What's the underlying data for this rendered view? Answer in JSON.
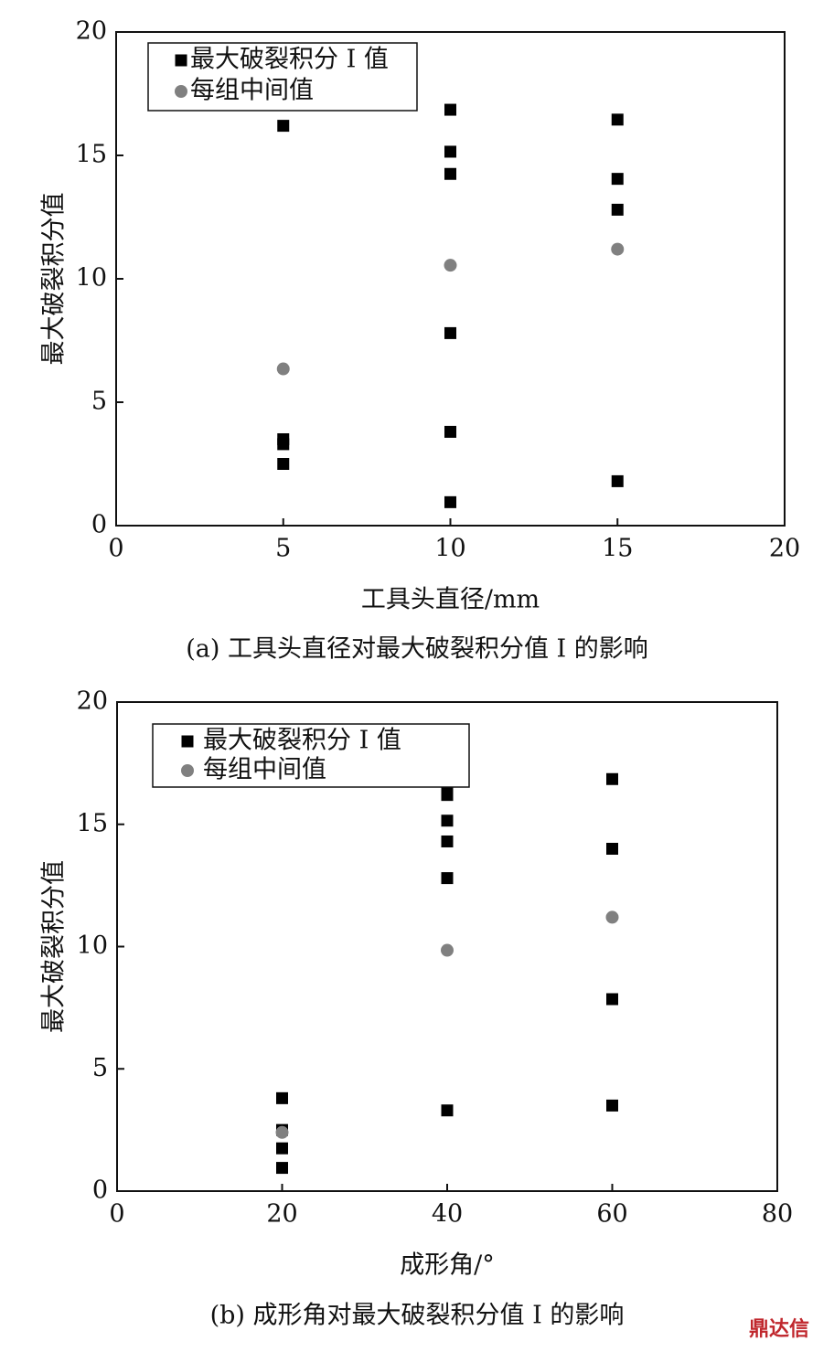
{
  "chart_data": [
    {
      "type": "scatter",
      "y_label": "最大破裂积分值",
      "x_label": "工具头直径/mm",
      "caption": "(a) 工具头直径对最大破裂积分值 I 的影响",
      "xlim": [
        0,
        20
      ],
      "ylim": [
        0,
        20
      ],
      "xticks": [
        0,
        5,
        10,
        15,
        20
      ],
      "yticks": [
        0,
        5,
        10,
        15,
        20
      ],
      "series": [
        {
          "name": "最大破裂积分 I 值",
          "color": "#000000",
          "marker": "square",
          "x": [
            5,
            5,
            5,
            5,
            10,
            10,
            10,
            10,
            10,
            10,
            15,
            15,
            15,
            15
          ],
          "values": [
            16.2,
            3.5,
            3.3,
            2.5,
            16.85,
            15.15,
            14.25,
            7.8,
            3.8,
            0.95,
            16.45,
            14.05,
            12.8,
            1.8
          ]
        },
        {
          "name": "每组中间值",
          "color": "#808080",
          "marker": "circle",
          "x": [
            5,
            10,
            15
          ],
          "values": [
            6.35,
            10.55,
            11.2
          ]
        }
      ]
    },
    {
      "type": "scatter",
      "y_label": "最大破裂积分值",
      "x_label": "成形角/°",
      "caption": "(b) 成形角对最大破裂积分值 I 的影响",
      "xlim": [
        0,
        80
      ],
      "ylim": [
        0,
        20
      ],
      "xticks": [
        0,
        20,
        40,
        60,
        80
      ],
      "yticks": [
        0,
        5,
        10,
        15,
        20
      ],
      "series": [
        {
          "name": "最大破裂积分 I 值",
          "color": "#000000",
          "marker": "square",
          "x": [
            20,
            20,
            20,
            20,
            40,
            40,
            40,
            40,
            40,
            40,
            60,
            60,
            60,
            60
          ],
          "values": [
            3.8,
            2.5,
            1.75,
            0.95,
            16.45,
            16.2,
            15.15,
            14.3,
            12.8,
            3.3,
            16.85,
            14.0,
            7.85,
            3.5
          ]
        },
        {
          "name": "每组中间值",
          "color": "#808080",
          "marker": "circle",
          "x": [
            20,
            40,
            60
          ],
          "values": [
            2.4,
            9.85,
            11.2
          ]
        }
      ]
    }
  ],
  "watermark": "鼎达信"
}
